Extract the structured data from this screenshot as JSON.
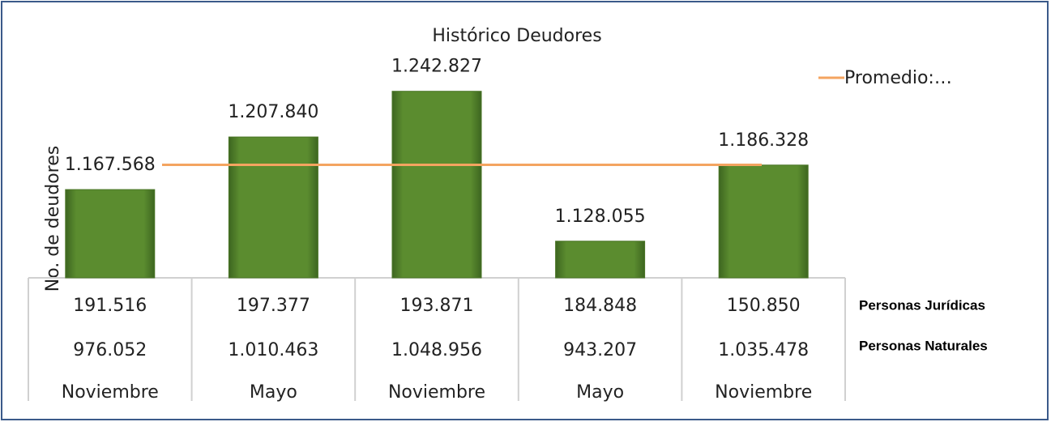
{
  "chart_data": {
    "type": "bar",
    "title": "Histórico Deudores",
    "ylabel": "No. de deudores",
    "categories": [
      "Noviembre",
      "Mayo",
      "Noviembre",
      "Mayo",
      "Noviembre"
    ],
    "values": [
      1167568,
      1207840,
      1242827,
      1128055,
      1186328
    ],
    "value_labels": [
      "1.167.568",
      "1.207.840",
      "1.242.827",
      "1.128.055",
      "1.186.328"
    ],
    "color": "#5b8c2f",
    "ylim": [
      1100000,
      1260000
    ],
    "average": {
      "name": "Promedio:…",
      "value": 1186524,
      "color": "#f4a460"
    },
    "table": [
      {
        "name": "Personas Jurídicas",
        "values": [
          191516,
          197377,
          193871,
          184848,
          150850
        ],
        "value_labels": [
          "191.516",
          "197.377",
          "193.871",
          "184.848",
          "150.850"
        ]
      },
      {
        "name": "Personas Naturales",
        "values": [
          976052,
          1010463,
          1048956,
          943207,
          1035478
        ],
        "value_labels": [
          "976.052",
          "1.010.463",
          "1.048.956",
          "943.207",
          "1.035.478"
        ]
      }
    ]
  }
}
